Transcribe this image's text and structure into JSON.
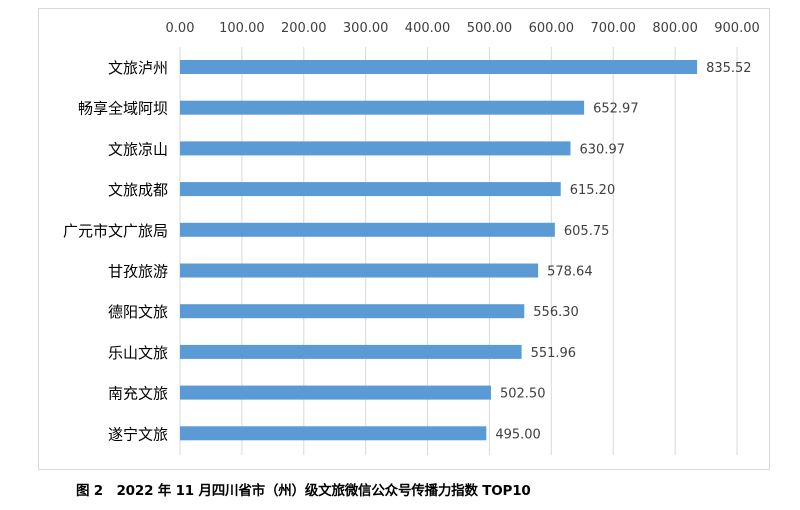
{
  "chart_data": {
    "type": "bar",
    "orientation": "horizontal",
    "title": "图 2   2022 年 11 月四川省市（州）级文旅微信公众号传播力指数 TOP10",
    "categories": [
      "文旅泸州",
      "畅享全域阿坝",
      "文旅凉山",
      "文旅成都",
      "广元市文广旅局",
      "甘孜旅游",
      "德阳文旅",
      "乐山文旅",
      "南充文旅",
      "遂宁文旅"
    ],
    "values": [
      835.52,
      652.97,
      630.97,
      615.2,
      605.75,
      578.64,
      556.3,
      551.96,
      502.5,
      495.0
    ],
    "value_labels": [
      "835.52",
      "652.97",
      "630.97",
      "615.20",
      "605.75",
      "578.64",
      "556.30",
      "551.96",
      "502.50",
      "495.00"
    ],
    "xlim": [
      0,
      900
    ],
    "x_ticks": [
      "0.00",
      "100.00",
      "200.00",
      "300.00",
      "400.00",
      "500.00",
      "600.00",
      "700.00",
      "800.00",
      "900.00"
    ],
    "xlabel": "",
    "ylabel": "",
    "axis_position": "top",
    "grid": true,
    "bar_color": "#5b9bd5",
    "grid_color": "#d9d9d9"
  }
}
